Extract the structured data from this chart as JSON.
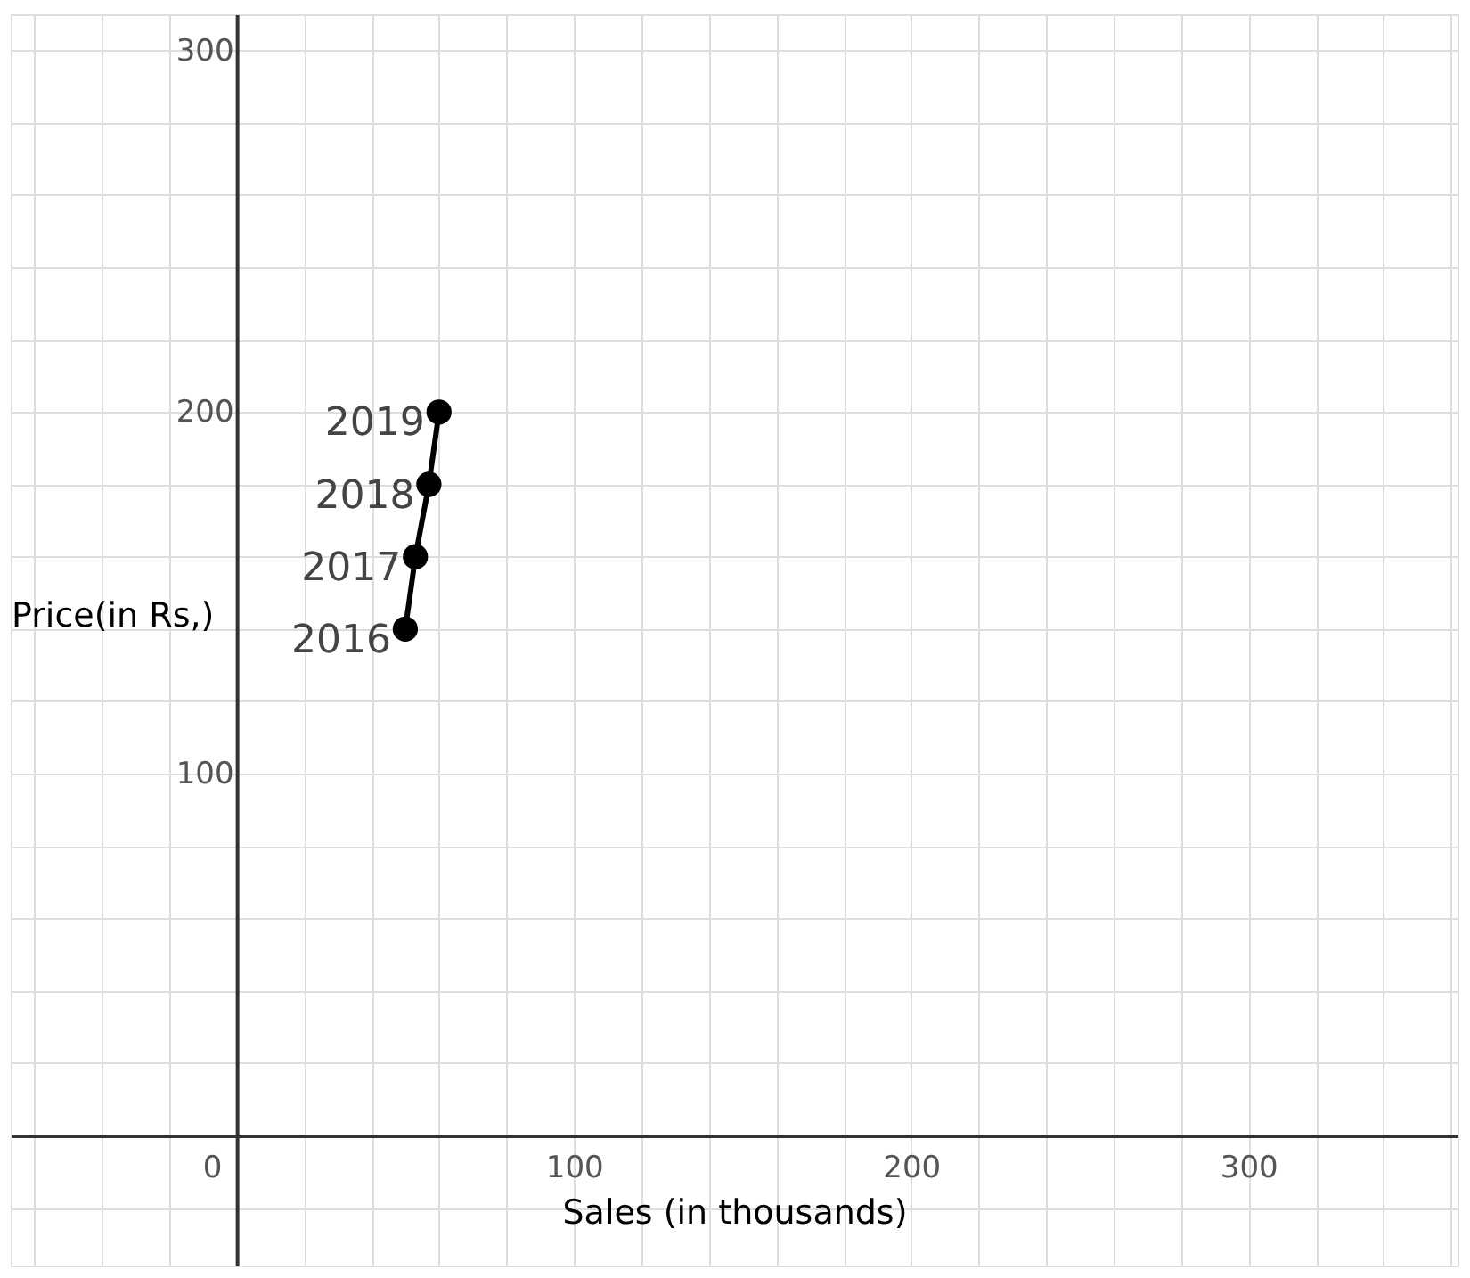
{
  "chart_data": {
    "type": "line",
    "xlabel": "Sales (in thousands)",
    "ylabel": "Price(in Rs,)",
    "x": [
      50,
      53,
      57,
      60
    ],
    "series": [
      {
        "color": "#000000",
        "values": [
          140,
          160,
          180,
          200
        ]
      }
    ],
    "marker": "circle",
    "line_style": "solid",
    "grid": true,
    "xlim": [
      -67,
      362
    ],
    "ylim": [
      -36,
      310
    ],
    "xticks": [
      {
        "value": -60,
        "label": null
      },
      {
        "value": -40,
        "label": null
      },
      {
        "value": -20,
        "label": null
      },
      0,
      {
        "value": 20,
        "label": null
      },
      {
        "value": 40,
        "label": null
      },
      {
        "value": 60,
        "label": null
      },
      {
        "value": 80,
        "label": null
      },
      100,
      {
        "value": 120,
        "label": null
      },
      {
        "value": 140,
        "label": null
      },
      {
        "value": 160,
        "label": null
      },
      {
        "value": 180,
        "label": null
      },
      200,
      {
        "value": 220,
        "label": null
      },
      {
        "value": 240,
        "label": null
      },
      {
        "value": 260,
        "label": null
      },
      {
        "value": 280,
        "label": null
      },
      300,
      {
        "value": 320,
        "label": null
      },
      {
        "value": 340,
        "label": null
      },
      {
        "value": 360,
        "label": null
      }
    ],
    "yticks": [
      {
        "value": -20,
        "label": null
      },
      {
        "value": 0,
        "label": null
      },
      {
        "value": 20,
        "label": null
      },
      {
        "value": 40,
        "label": null
      },
      {
        "value": 60,
        "label": null
      },
      {
        "value": 80,
        "label": null
      },
      100,
      {
        "value": 120,
        "label": null
      },
      {
        "value": 140,
        "label": null
      },
      {
        "value": 160,
        "label": null
      },
      {
        "value": 180,
        "label": null
      },
      200,
      {
        "value": 220,
        "label": null
      },
      {
        "value": 240,
        "label": null
      },
      {
        "value": 260,
        "label": null
      },
      {
        "value": 280,
        "label": null
      },
      300
    ],
    "annotations": [
      {
        "text": "2016",
        "x": 50,
        "y": 140
      },
      {
        "text": "2017",
        "x": 53,
        "y": 160
      },
      {
        "text": "2018",
        "x": 57,
        "y": 180
      },
      {
        "text": "2019",
        "x": 60,
        "y": 200
      }
    ]
  }
}
